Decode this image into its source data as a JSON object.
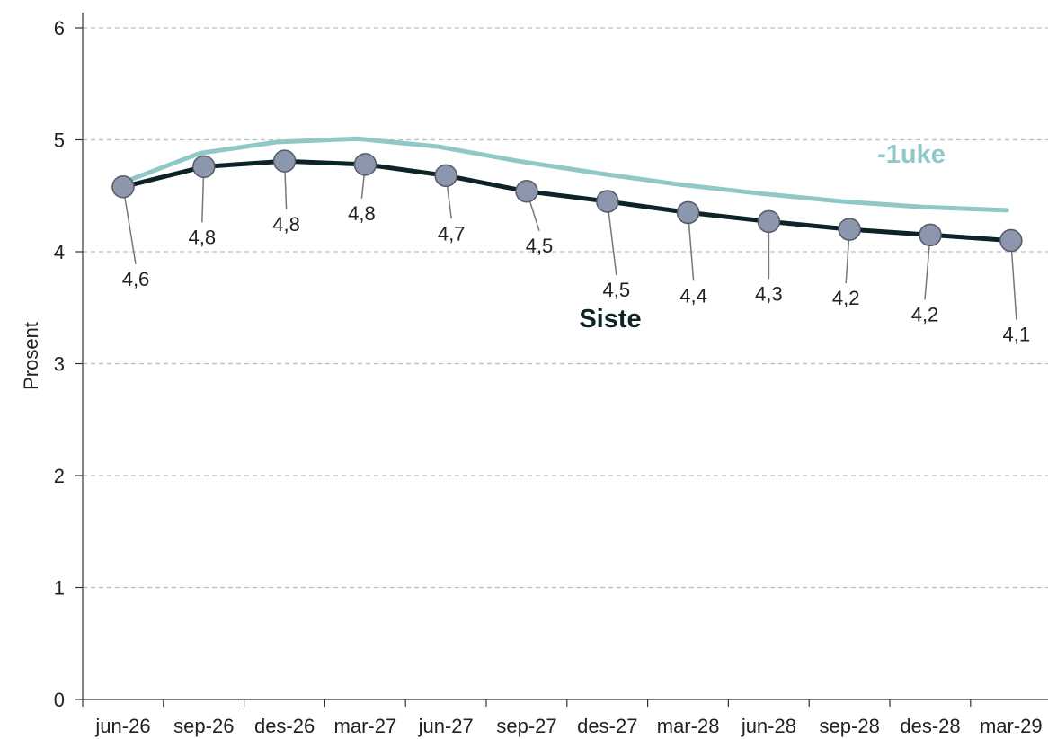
{
  "chart_data": {
    "type": "line",
    "ylabel": "Prosent",
    "ylim": [
      0,
      6
    ],
    "yticks": [
      0,
      1,
      2,
      3,
      4,
      5,
      6
    ],
    "grid": "horizontal-dashed",
    "categories": [
      "jun-26",
      "sep-26",
      "des-26",
      "mar-27",
      "jun-27",
      "sep-27",
      "des-27",
      "mar-28",
      "jun-28",
      "sep-28",
      "des-28",
      "mar-29"
    ],
    "series": [
      {
        "name": "Siste",
        "color": "#0d2326",
        "markers": true,
        "marker_color": "#8c96ac",
        "values": [
          4.58,
          4.76,
          4.81,
          4.78,
          4.68,
          4.54,
          4.45,
          4.35,
          4.27,
          4.2,
          4.15,
          4.1
        ],
        "labels": [
          "4,6",
          "4,8",
          "4,8",
          "4,8",
          "4,7",
          "4,5",
          "4,5",
          "4,4",
          "4,3",
          "4,2",
          "4,2",
          "4,1"
        ]
      },
      {
        "name": "-1uke",
        "color": "#8fc8c6",
        "markers": false,
        "x": [
          0,
          0.95,
          1.9,
          2.9,
          3.9,
          4.9,
          5.9,
          6.9,
          7.9,
          8.9,
          9.9,
          10.95
        ],
        "values": [
          4.62,
          4.88,
          4.98,
          5.01,
          4.94,
          4.81,
          4.7,
          4.6,
          4.52,
          4.45,
          4.4,
          4.37
        ]
      }
    ]
  }
}
